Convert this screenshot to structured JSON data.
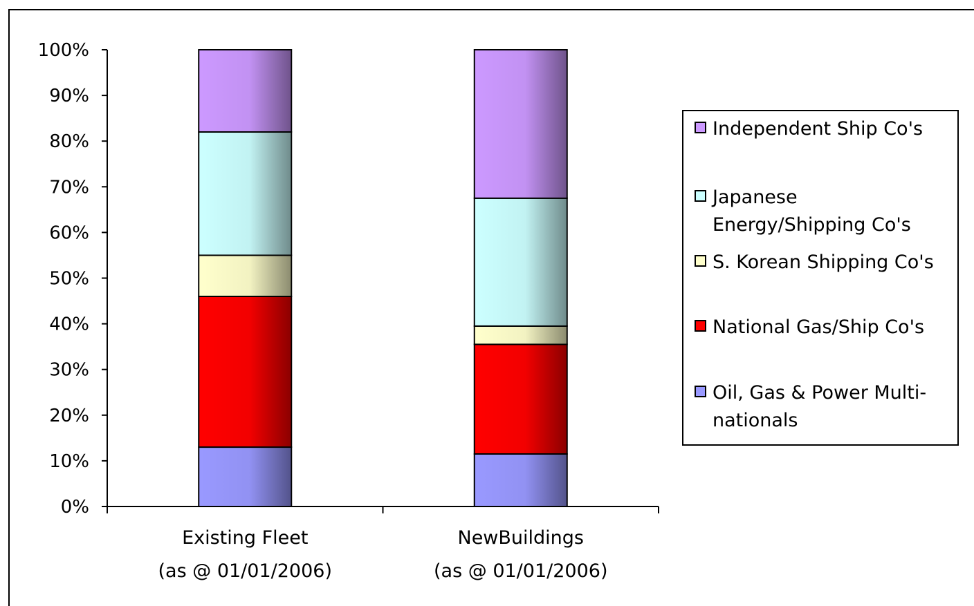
{
  "chart_data": {
    "type": "bar",
    "stacked": true,
    "percent_stacked": true,
    "title": "",
    "xlabel": "",
    "ylabel": "",
    "ylim": [
      0,
      100
    ],
    "y_ticks": [
      "0%",
      "10%",
      "20%",
      "30%",
      "40%",
      "50%",
      "60%",
      "70%",
      "80%",
      "90%",
      "100%"
    ],
    "categories": [
      [
        "Existing Fleet",
        "(as @ 01/01/2006)"
      ],
      [
        "NewBuildings",
        "(as @ 01/01/2006)"
      ]
    ],
    "series": [
      {
        "name": "Oil, Gas & Power Multi-nationals",
        "legend_lines": [
          "Oil, Gas & Power Multi-",
          "nationals"
        ],
        "color": "#9999ff",
        "values": [
          13,
          11.5
        ]
      },
      {
        "name": "National Gas/Ship Co's",
        "legend_lines": [
          "National Gas/Ship Co's"
        ],
        "color": "#ff0000",
        "values": [
          33,
          24
        ]
      },
      {
        "name": "S. Korean Shipping Co's",
        "legend_lines": [
          "S. Korean Shipping Co's"
        ],
        "color": "#ffffcc",
        "values": [
          9,
          4
        ]
      },
      {
        "name": "Japanese Energy/Shipping Co's",
        "legend_lines": [
          "Japanese",
          "Energy/Shipping Co's"
        ],
        "color": "#ccffff",
        "values": [
          27,
          28
        ]
      },
      {
        "name": "Independent Ship Co's",
        "legend_lines": [
          "Independent Ship Co's"
        ],
        "color": "#cc99ff",
        "values": [
          18,
          32.5
        ]
      }
    ],
    "grid": false,
    "legend_position": "right"
  }
}
